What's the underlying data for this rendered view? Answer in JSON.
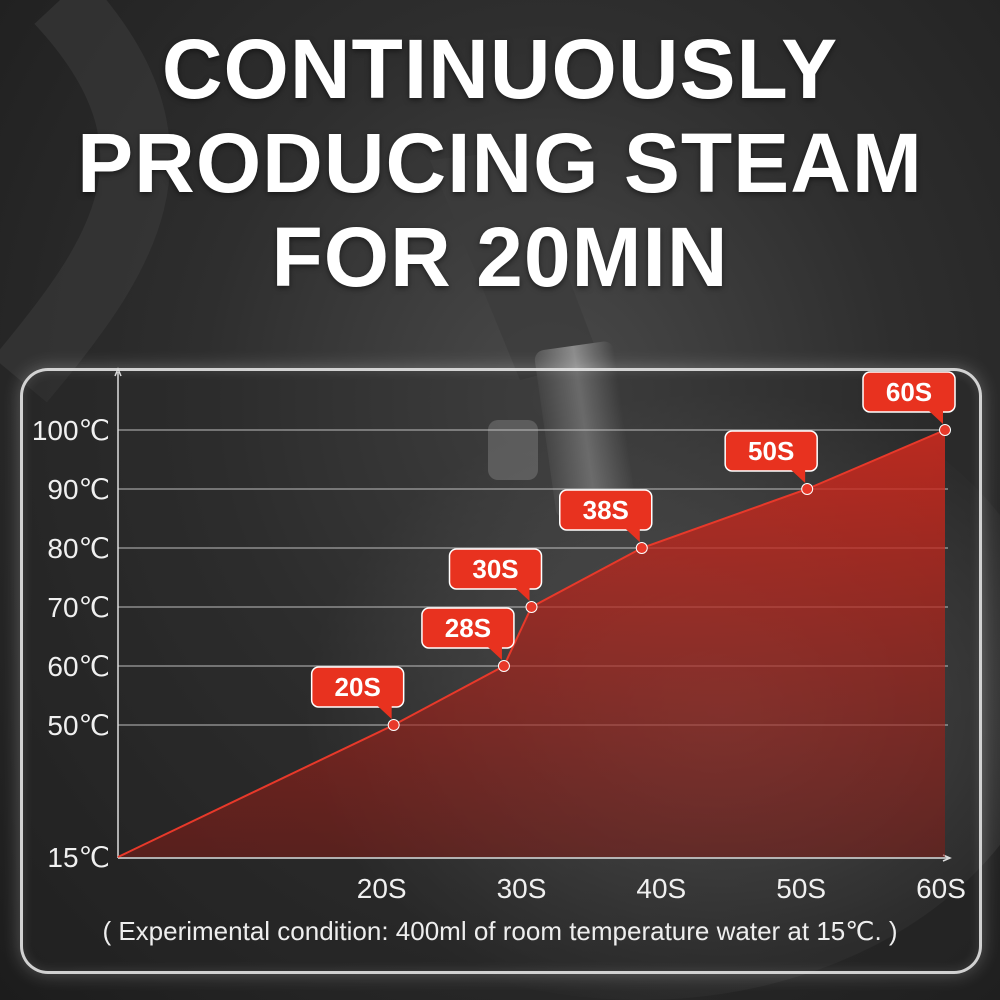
{
  "headline": {
    "line1": "CONTINUOUSLY",
    "line2": "PRODUCING STEAM",
    "line3": "FOR 20MIN"
  },
  "chart_data": {
    "type": "area",
    "title": "",
    "xlabel": "",
    "ylabel": "",
    "x_tick_labels": [
      "20S",
      "30S",
      "40S",
      "50S",
      "60S"
    ],
    "x_ticks": [
      20,
      30,
      40,
      50,
      60
    ],
    "y_tick_labels": [
      "15℃",
      "50℃",
      "60℃",
      "70℃",
      "80℃",
      "90℃",
      "100℃"
    ],
    "y_ticks": [
      15,
      50,
      60,
      70,
      80,
      90,
      100
    ],
    "series": [
      {
        "points": [
          {
            "t": 0,
            "temp": 15,
            "label": ""
          },
          {
            "t": 20,
            "temp": 50,
            "label": "20S"
          },
          {
            "t": 28,
            "temp": 60,
            "label": "28S"
          },
          {
            "t": 30,
            "temp": 70,
            "label": "30S"
          },
          {
            "t": 38,
            "temp": 80,
            "label": "38S"
          },
          {
            "t": 50,
            "temp": 90,
            "label": "50S"
          },
          {
            "t": 60,
            "temp": 100,
            "label": "60S"
          }
        ]
      }
    ],
    "grid": true,
    "colors": {
      "area": "#d42a1e",
      "marker": "#e8392a",
      "label_bg": "#e8321f",
      "grid": "#c8c8c8",
      "axis": "#dddddd"
    }
  },
  "footnote": "( Experimental condition: 400ml of room temperature water at 15℃. )"
}
